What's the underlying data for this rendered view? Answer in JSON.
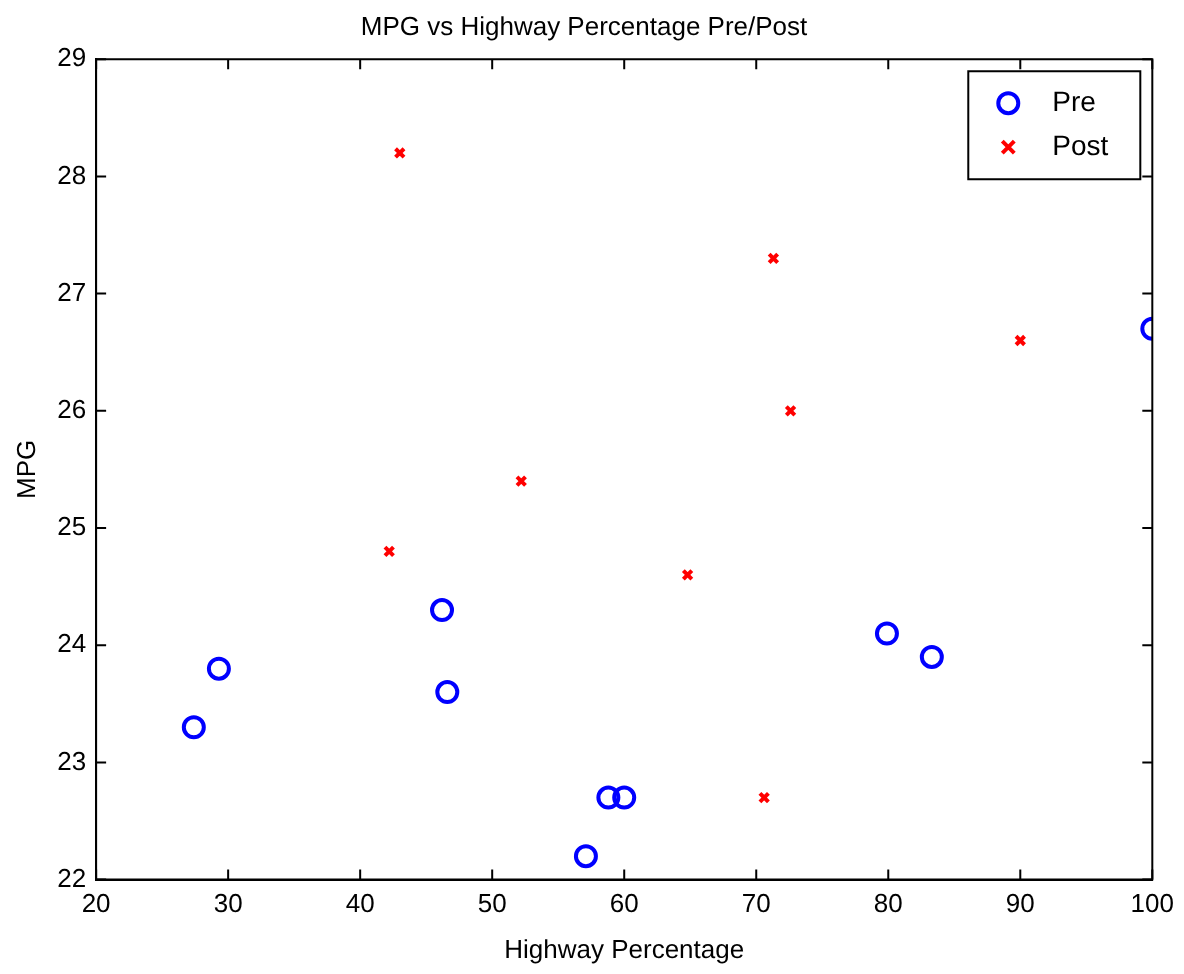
{
  "chart_data": {
    "type": "scatter",
    "title": "MPG vs Highway Percentage Pre/Post",
    "xlabel": "Highway Percentage",
    "ylabel": "MPG",
    "xlim": [
      20,
      100
    ],
    "xticks": [
      20,
      30,
      40,
      50,
      60,
      70,
      80,
      90,
      100
    ],
    "ylim": [
      22,
      29
    ],
    "yticks": [
      22,
      23,
      24,
      25,
      26,
      27,
      28,
      29
    ],
    "grid": false,
    "legend": "top right",
    "series": [
      {
        "name": "Pre",
        "color": "#0000ff",
        "marker": "circle",
        "x": [
          27.4,
          29.3,
          46.2,
          46.6,
          57.1,
          58.8,
          60,
          79.9,
          83.3,
          100
        ],
        "values": [
          23.3,
          23.8,
          24.3,
          23.6,
          22.2,
          22.7,
          22.7,
          24.1,
          23.9,
          26.7
        ]
      },
      {
        "name": "Post",
        "color": "#ff0000",
        "marker": "cross",
        "x": [
          43,
          71.3,
          90,
          72.6,
          52.2,
          42.2,
          64.8,
          70.6
        ],
        "values": [
          28.2,
          27.3,
          26.6,
          26.0,
          25.4,
          24.8,
          24.6,
          22.7
        ]
      }
    ]
  }
}
